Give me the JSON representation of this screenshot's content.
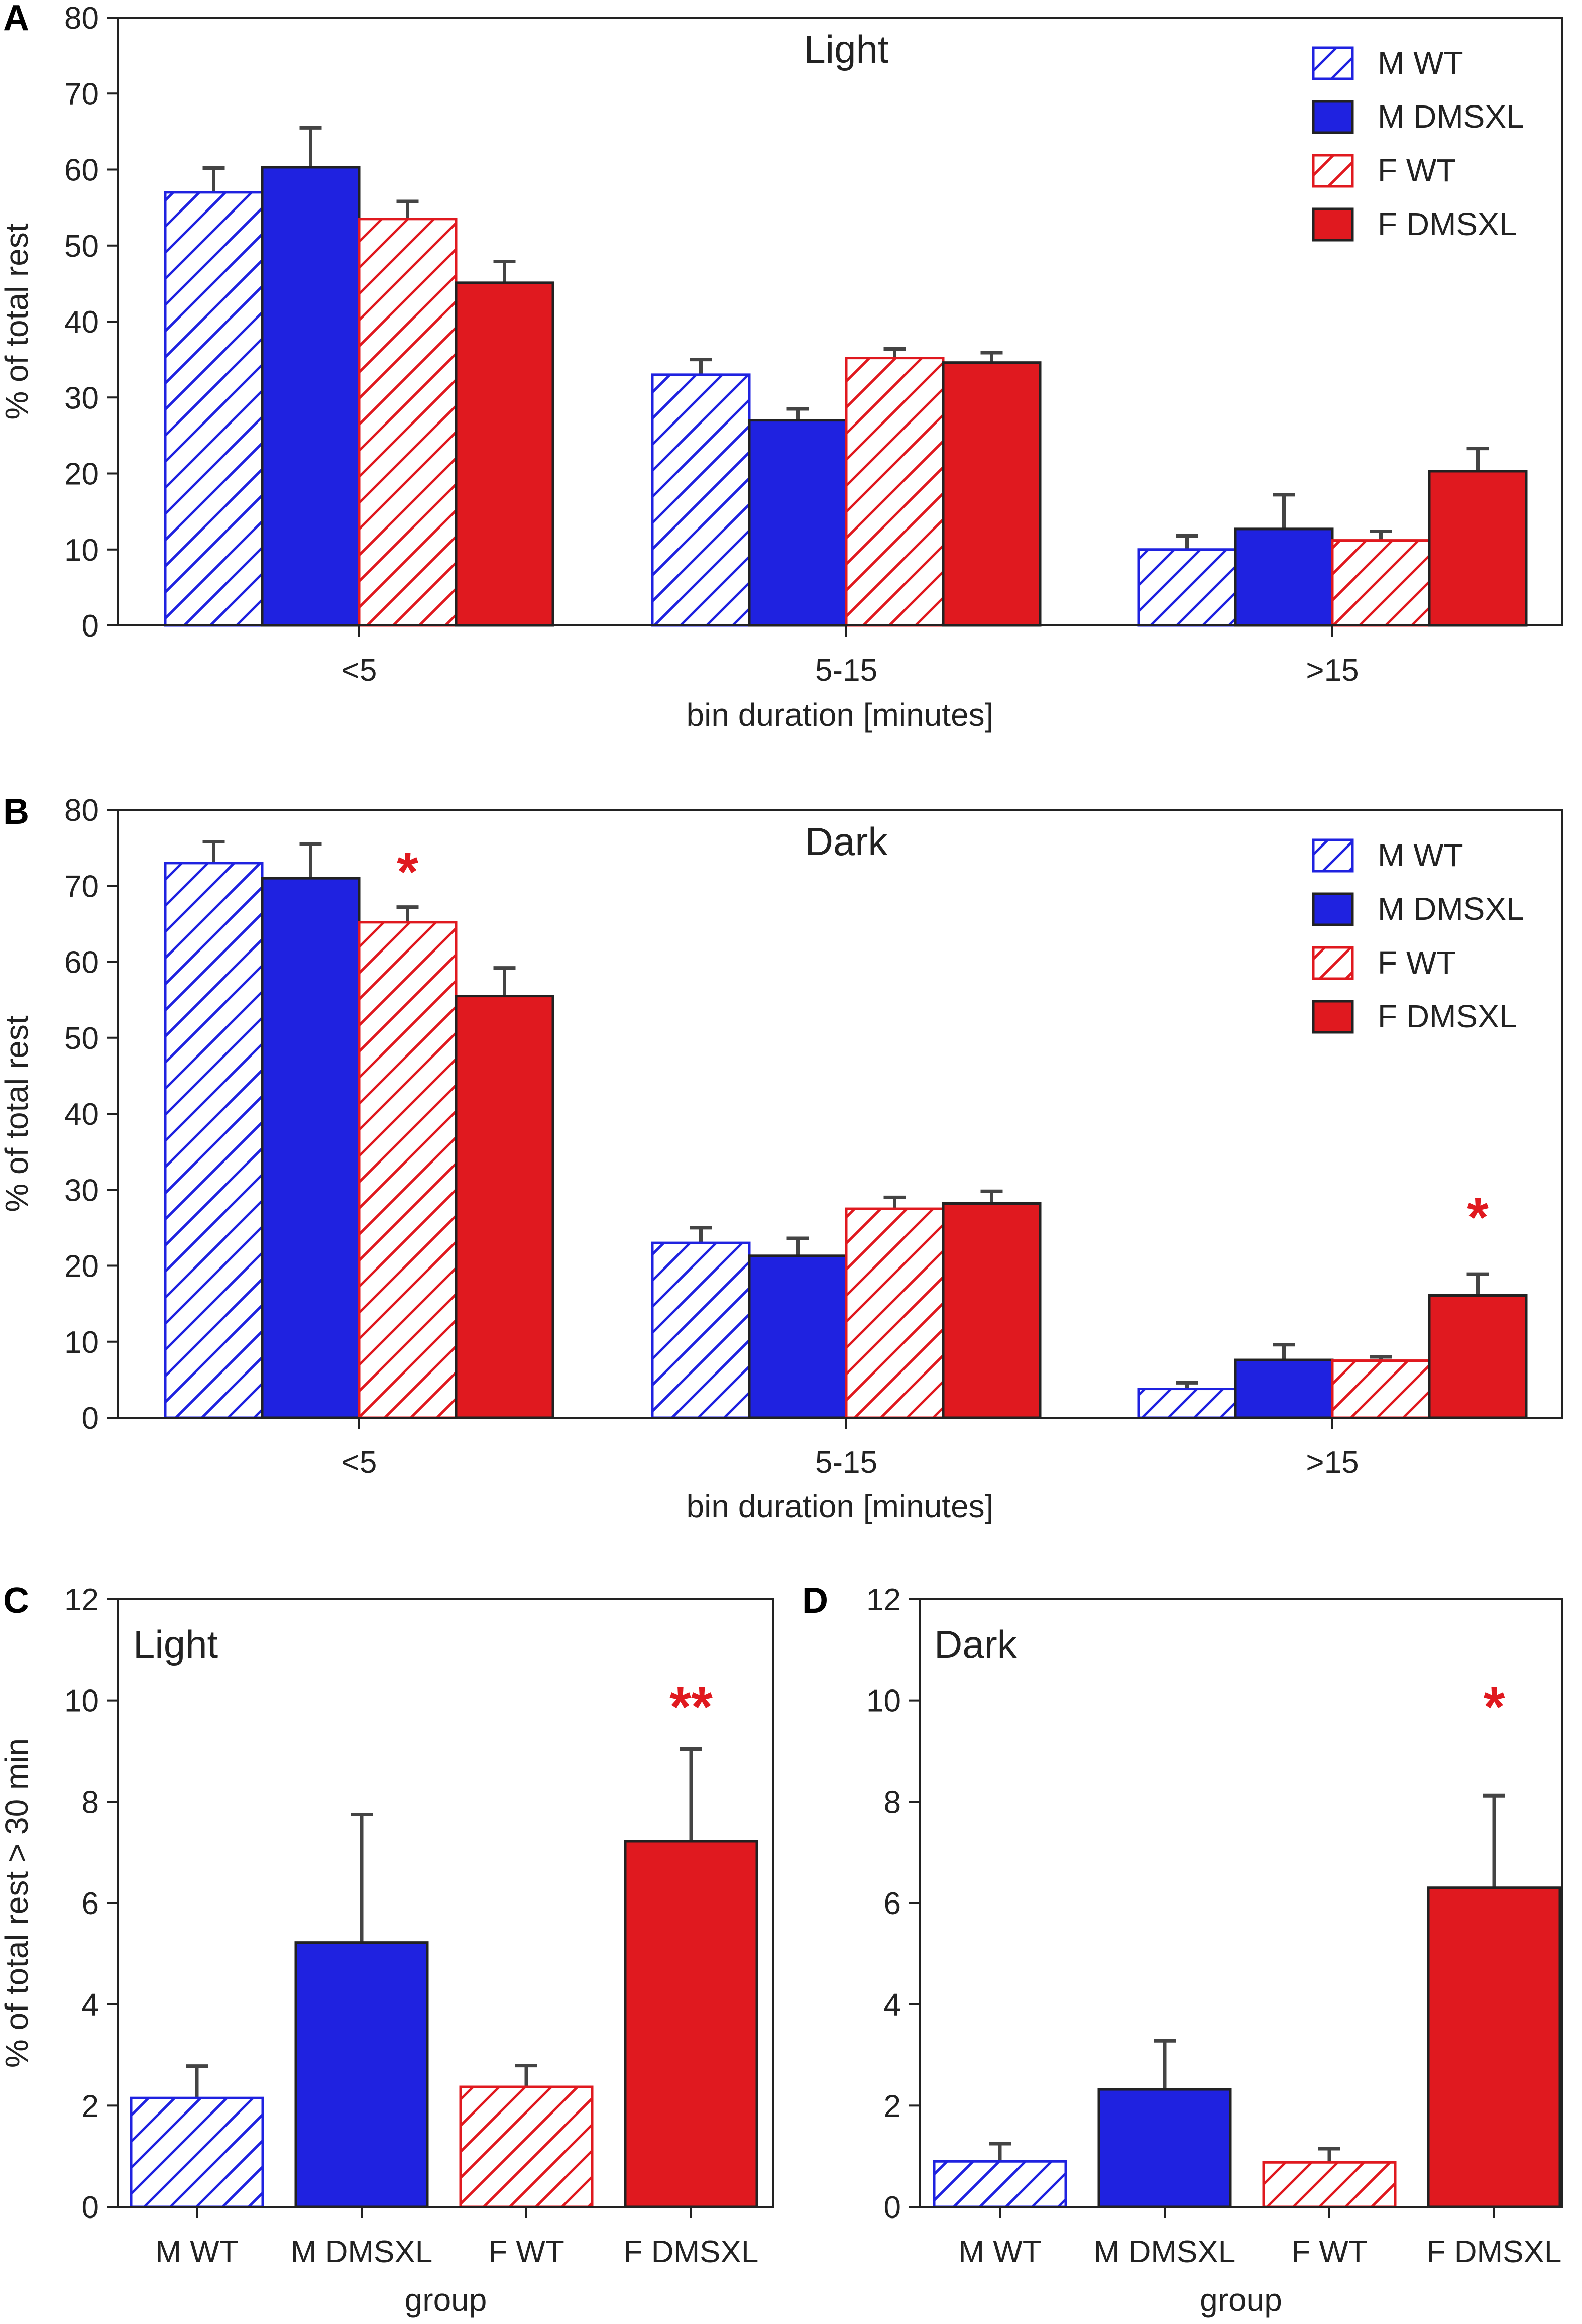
{
  "colors": {
    "blue": "#1f22e0",
    "red": "#e0191f",
    "axis": "#222222",
    "error": "#444444",
    "star": "#e0191f"
  },
  "legend": [
    {
      "label": "M WT",
      "style": "hatch",
      "color": "blue"
    },
    {
      "label": "M DMSXL",
      "style": "solid",
      "color": "blue"
    },
    {
      "label": "F WT",
      "style": "hatch",
      "color": "red"
    },
    {
      "label": "F DMSXL",
      "style": "solid",
      "color": "red"
    }
  ],
  "chart_data": [
    {
      "panel": "A",
      "type": "bar",
      "title": "Light",
      "xlabel": "bin duration [minutes]",
      "ylabel": "% of total rest",
      "ylim": [
        0,
        80
      ],
      "yticks": [
        0,
        10,
        20,
        30,
        40,
        50,
        60,
        70,
        80
      ],
      "categories": [
        "<5",
        "5-15",
        ">15"
      ],
      "series": [
        {
          "name": "M WT",
          "values": [
            57,
            33,
            10
          ],
          "errors": [
            3.2,
            2.0,
            1.8
          ]
        },
        {
          "name": "M DMSXL",
          "values": [
            60.3,
            27,
            12.7
          ],
          "errors": [
            5.2,
            1.5,
            4.5
          ]
        },
        {
          "name": "F WT",
          "values": [
            53.5,
            35.2,
            11.2
          ],
          "errors": [
            2.3,
            1.2,
            1.2
          ]
        },
        {
          "name": "F DMSXL",
          "values": [
            45.1,
            34.6,
            20.3
          ],
          "errors": [
            2.8,
            1.3,
            3.0
          ]
        }
      ],
      "stars": []
    },
    {
      "panel": "B",
      "type": "bar",
      "title": "Dark",
      "xlabel": "bin duration [minutes]",
      "ylabel": "% of total rest",
      "ylim": [
        0,
        80
      ],
      "yticks": [
        0,
        10,
        20,
        30,
        40,
        50,
        60,
        70,
        80
      ],
      "categories": [
        "<5",
        "5-15",
        ">15"
      ],
      "series": [
        {
          "name": "M WT",
          "values": [
            73,
            23,
            3.8
          ],
          "errors": [
            2.8,
            2.0,
            0.8
          ]
        },
        {
          "name": "M DMSXL",
          "values": [
            71,
            21.3,
            7.6
          ],
          "errors": [
            4.5,
            2.3,
            2.0
          ]
        },
        {
          "name": "F WT",
          "values": [
            65.2,
            27.5,
            7.5
          ],
          "errors": [
            2.0,
            1.5,
            0.5
          ]
        },
        {
          "name": "F DMSXL",
          "values": [
            55.5,
            28.2,
            16.1
          ],
          "errors": [
            3.7,
            1.6,
            2.8
          ]
        }
      ],
      "stars": [
        {
          "text": "*",
          "category": 0,
          "series": 2,
          "value": 72
        },
        {
          "text": "*",
          "category": 2,
          "series": 3,
          "value": 26.5
        }
      ]
    },
    {
      "panel": "C",
      "type": "bar",
      "title": "Light",
      "xlabel": "group",
      "ylabel": "% of total rest > 30 min",
      "ylim": [
        0,
        12
      ],
      "yticks": [
        0,
        2,
        4,
        6,
        8,
        10,
        12
      ],
      "categories": [
        "M WT",
        "M DMSXL",
        "F WT",
        "F DMSXL"
      ],
      "values": [
        2.15,
        5.22,
        2.37,
        7.22
      ],
      "errors": [
        0.63,
        2.53,
        0.42,
        1.82
      ],
      "stars": [
        {
          "text": "**",
          "category": 3,
          "value": 9.9
        }
      ]
    },
    {
      "panel": "D",
      "type": "bar",
      "title": "Dark",
      "xlabel": "group",
      "ylabel": "",
      "ylim": [
        0,
        12
      ],
      "yticks": [
        0,
        2,
        4,
        6,
        8,
        10,
        12
      ],
      "categories": [
        "M WT",
        "M DMSXL",
        "F WT",
        "F DMSXL"
      ],
      "values": [
        0.9,
        2.32,
        0.88,
        6.3
      ],
      "errors": [
        0.35,
        0.96,
        0.27,
        1.82
      ],
      "stars": [
        {
          "text": "*",
          "category": 3,
          "value": 9.9
        }
      ]
    }
  ]
}
